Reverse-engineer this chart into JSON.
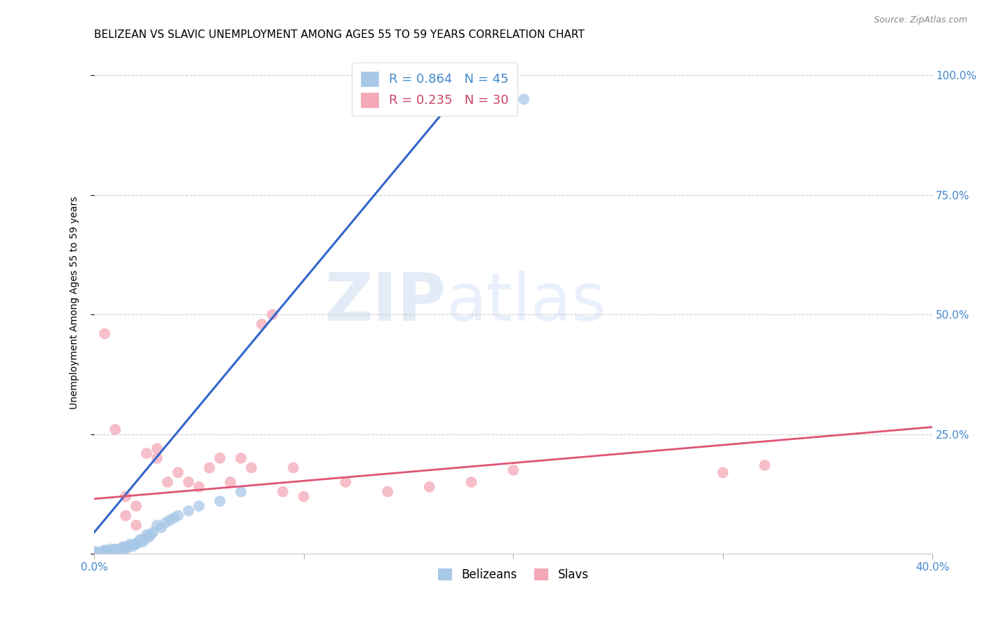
{
  "title": "BELIZEAN VS SLAVIC UNEMPLOYMENT AMONG AGES 55 TO 59 YEARS CORRELATION CHART",
  "source": "Source: ZipAtlas.com",
  "ylabel": "Unemployment Among Ages 55 to 59 years",
  "xlim": [
    0.0,
    0.4
  ],
  "ylim": [
    0.0,
    1.05
  ],
  "watermark_zip": "ZIP",
  "watermark_atlas": "atlas",
  "belizean_color": "#a8c8e8",
  "slavic_color": "#f4a8b8",
  "belizean_line_color": "#3366cc",
  "slavic_line_color": "#e05575",
  "legend_line1": "R = 0.864   N = 45",
  "legend_line2": "R = 0.235   N = 30",
  "legend_color1": "#4488cc",
  "legend_color2": "#cc4466",
  "tick_color": "#4488cc",
  "belizean_points_x": [
    0.0,
    0.001,
    0.002,
    0.003,
    0.004,
    0.005,
    0.005,
    0.006,
    0.007,
    0.008,
    0.008,
    0.009,
    0.01,
    0.01,
    0.011,
    0.012,
    0.013,
    0.013,
    0.014,
    0.015,
    0.016,
    0.017,
    0.018,
    0.019,
    0.02,
    0.021,
    0.022,
    0.023,
    0.024,
    0.025,
    0.026,
    0.027,
    0.028,
    0.03,
    0.032,
    0.034,
    0.036,
    0.038,
    0.04,
    0.045,
    0.05,
    0.06,
    0.07,
    0.195,
    0.205
  ],
  "belizean_points_y": [
    0.005,
    0.004,
    0.003,
    0.002,
    0.005,
    0.005,
    0.008,
    0.003,
    0.006,
    0.004,
    0.01,
    0.006,
    0.01,
    0.005,
    0.008,
    0.01,
    0.005,
    0.012,
    0.015,
    0.01,
    0.015,
    0.02,
    0.015,
    0.02,
    0.02,
    0.025,
    0.03,
    0.025,
    0.03,
    0.04,
    0.035,
    0.04,
    0.045,
    0.06,
    0.055,
    0.065,
    0.07,
    0.075,
    0.08,
    0.09,
    0.1,
    0.11,
    0.13,
    0.94,
    0.95
  ],
  "slavic_points_x": [
    0.005,
    0.01,
    0.015,
    0.015,
    0.02,
    0.02,
    0.025,
    0.03,
    0.03,
    0.035,
    0.04,
    0.045,
    0.05,
    0.055,
    0.06,
    0.065,
    0.07,
    0.075,
    0.08,
    0.085,
    0.09,
    0.095,
    0.1,
    0.12,
    0.14,
    0.16,
    0.18,
    0.2,
    0.3,
    0.32
  ],
  "slavic_points_y": [
    0.46,
    0.26,
    0.08,
    0.12,
    0.06,
    0.1,
    0.21,
    0.2,
    0.22,
    0.15,
    0.17,
    0.15,
    0.14,
    0.18,
    0.2,
    0.15,
    0.2,
    0.18,
    0.48,
    0.5,
    0.13,
    0.18,
    0.12,
    0.15,
    0.13,
    0.14,
    0.15,
    0.175,
    0.17,
    0.185
  ],
  "belizean_trend_x": [
    0.0,
    0.185
  ],
  "belizean_trend_y": [
    0.045,
    1.02
  ],
  "slavic_trend_x": [
    0.0,
    0.4
  ],
  "slavic_trend_y": [
    0.115,
    0.265
  ],
  "grid_color": "#cccccc",
  "title_fontsize": 11,
  "axis_label_fontsize": 10,
  "tick_fontsize": 11,
  "source_fontsize": 9
}
